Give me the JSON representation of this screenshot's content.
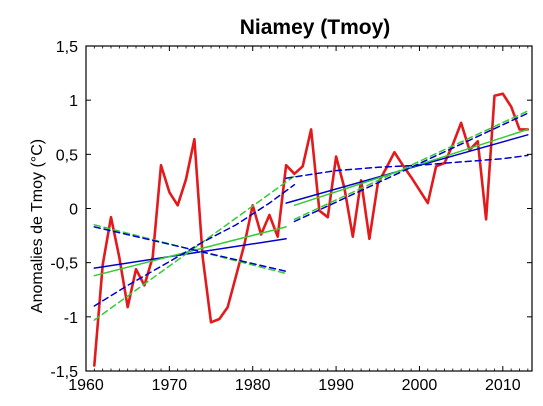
{
  "chart_data": {
    "type": "line",
    "title": "Niamey (Tmoy)",
    "xlabel": "",
    "ylabel": "Anomalies de Tmoy (°C)",
    "xlim": [
      1960,
      2013.5
    ],
    "ylim": [
      -1.5,
      1.5
    ],
    "x_ticks": [
      1960,
      1970,
      1980,
      1990,
      2000,
      2010
    ],
    "x_tick_labels": [
      "1960",
      "1970",
      "1980",
      "1990",
      "2000",
      "2010"
    ],
    "y_ticks": [
      -1.5,
      -1,
      -0.5,
      0,
      0.5,
      1,
      1.5
    ],
    "y_tick_labels": [
      "-1,5",
      "-1",
      "-0,5",
      "0",
      "0,5",
      "1",
      "1,5"
    ],
    "grid": false,
    "series": [
      {
        "color": "#e31a1c",
        "style": "solid",
        "x": [
          1961,
          1962,
          1963,
          1964,
          1965,
          1966,
          1967,
          1968,
          1969,
          1970,
          1971,
          1972,
          1973,
          1974,
          1975,
          1976,
          1977,
          1978,
          1979,
          1980,
          1981,
          1982,
          1983,
          1984,
          1985,
          1986,
          1987,
          1988,
          1989,
          1990,
          1991,
          1992,
          1993,
          1994,
          1995,
          1996,
          1997,
          1998,
          1999,
          2000,
          2001,
          2002,
          2003,
          2004,
          2005,
          2006,
          2007,
          2008,
          2009,
          2010,
          2011,
          2012,
          2013
        ],
        "y": [
          -1.45,
          -0.52,
          -0.08,
          -0.45,
          -0.91,
          -0.56,
          -0.71,
          -0.45,
          0.4,
          0.15,
          0.03,
          0.27,
          0.64,
          -0.45,
          -1.05,
          -1.02,
          -0.91,
          -0.62,
          -0.33,
          0.03,
          -0.24,
          -0.06,
          -0.26,
          0.4,
          0.32,
          0.39,
          0.73,
          -0.02,
          -0.08,
          0.48,
          0.19,
          -0.26,
          0.26,
          -0.28,
          0.23,
          0.37,
          0.52,
          0.4,
          0.29,
          0.17,
          0.05,
          0.39,
          0.42,
          0.59,
          0.79,
          0.54,
          0.62,
          -0.1,
          1.04,
          1.06,
          0.94,
          0.73,
          0.73
        ]
      },
      {
        "color": "#0000cc",
        "style": "solid",
        "x": [
          1961,
          1984
        ],
        "y": [
          -0.55,
          -0.28
        ]
      },
      {
        "color": "#0000cc",
        "style": "solid",
        "x": [
          1984,
          2013
        ],
        "y": [
          0.05,
          0.68
        ]
      },
      {
        "color": "#33cc33",
        "style": "solid",
        "x": [
          1961,
          1984
        ],
        "y": [
          -0.62,
          -0.17
        ]
      },
      {
        "color": "#33cc33",
        "style": "solid",
        "x": [
          1985,
          2013
        ],
        "y": [
          0.03,
          0.73
        ]
      },
      {
        "color": "#33cc33",
        "style": "dashed",
        "x": [
          1961,
          1985
        ],
        "y": [
          -1.03,
          0.3
        ]
      },
      {
        "color": "#33cc33",
        "style": "dashed",
        "x": [
          1961,
          1984
        ],
        "y": [
          -0.15,
          -0.6
        ]
      },
      {
        "color": "#33cc33",
        "style": "dashed",
        "x": [
          1985,
          2013
        ],
        "y": [
          -0.1,
          0.9
        ]
      },
      {
        "color": "#0000cc",
        "style": "dashed",
        "x": [
          1961,
          1984
        ],
        "y": [
          -0.17,
          -0.58
        ]
      },
      {
        "color": "#0000cc",
        "style": "dashed",
        "x": [
          1985,
          2013
        ],
        "y": [
          -0.12,
          0.88
        ]
      },
      {
        "color": "#0000cc",
        "style": "dashed",
        "x": [
          1961,
          1965,
          1970,
          1974,
          1978,
          1982,
          1985
        ],
        "y": [
          -0.9,
          -0.71,
          -0.49,
          -0.31,
          -0.15,
          0.05,
          0.22
        ]
      },
      {
        "color": "#0000cc",
        "style": "dashed",
        "x": [
          1984,
          1990,
          1995,
          2000,
          2005,
          2010,
          2013
        ],
        "y": [
          0.28,
          0.35,
          0.38,
          0.4,
          0.43,
          0.46,
          0.49
        ]
      }
    ]
  }
}
